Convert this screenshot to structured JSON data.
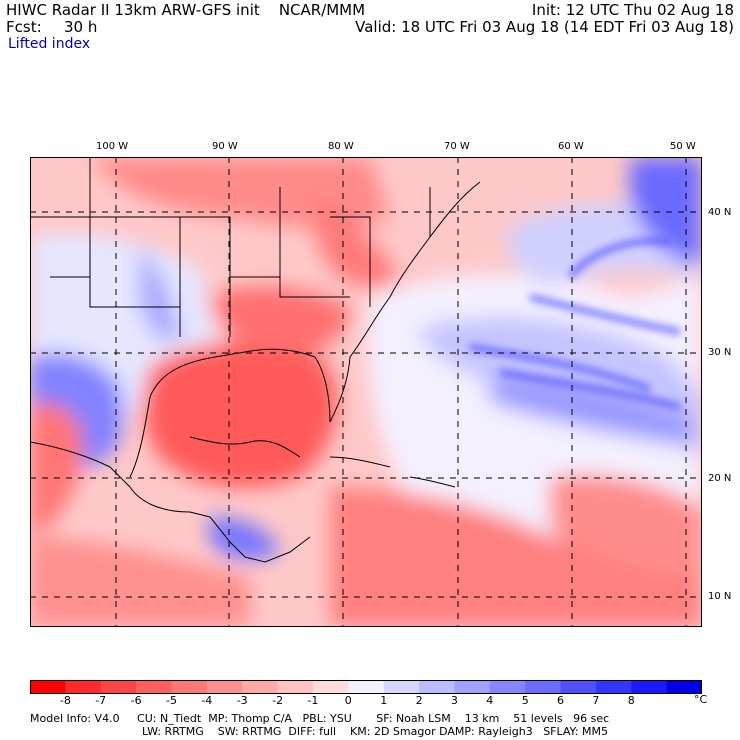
{
  "header": {
    "title_left": "HIWC Radar II 13km ARW-GFS init    NCAR/MMM",
    "init": "Init: 12 UTC Thu 02 Aug 18",
    "fcst_label": "Fcst:",
    "fcst_value": "30 h",
    "valid": "Valid: 18 UTC Fri 03 Aug 18 (14 EDT Fri 03 Aug 18)",
    "field_name": "Lifted index"
  },
  "map": {
    "lon_labels": [
      "100 W",
      "90 W",
      "80 W",
      "70 W",
      "60 W",
      "50 W"
    ],
    "lat_labels": [
      "40 N",
      "30 N",
      "20 N",
      "10 N"
    ]
  },
  "colorbar": {
    "labels": [
      "-8",
      "-7",
      "-6",
      "-5",
      "-4",
      "-3",
      "-2",
      "-1",
      "0",
      "1",
      "2",
      "3",
      "4",
      "5",
      "6",
      "7",
      "8"
    ],
    "unit": "°C",
    "colors": [
      "#ff0000",
      "#ff2a2a",
      "#ff4646",
      "#ff5f5f",
      "#ff7878",
      "#ff9090",
      "#ffa9a9",
      "#ffc3c3",
      "#ffdddd",
      "#f2f2ff",
      "#d6d6ff",
      "#bcbcff",
      "#a1a1ff",
      "#8686ff",
      "#6b6bff",
      "#5050ff",
      "#3535ff",
      "#1a1aff",
      "#0000e6"
    ]
  },
  "model_info": {
    "line1": "Model Info: V4.0     CU: N_Tiedt  MP: Thomp C/A   PBL: YSU       SF: Noah LSM    13 km    51 levels   96 sec",
    "line2": "LW: RRTMG    SW: RRTMG  DIFF: full    KM: 2D Smagor DAMP: Rayleigh3   SFLAY: MM5"
  }
}
